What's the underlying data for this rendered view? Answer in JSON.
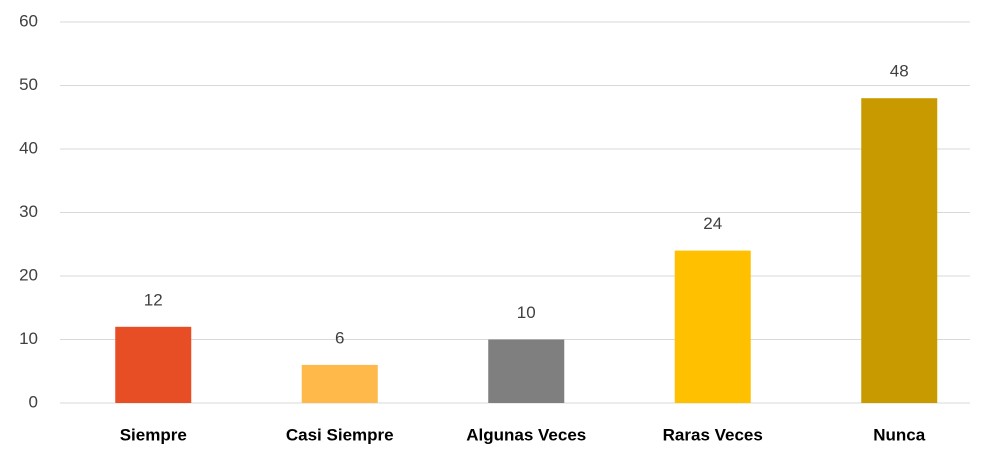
{
  "chart_data": {
    "type": "bar",
    "categories": [
      "Siempre",
      "Casi Siempre",
      "Algunas Veces",
      "Raras Veces",
      "Nunca"
    ],
    "values": [
      12,
      6,
      10,
      24,
      48
    ],
    "colors": [
      "#e84e26",
      "#ffb84a",
      "#7f7f7f",
      "#ffc000",
      "#c99a00"
    ],
    "ylim": [
      0,
      60
    ],
    "yticks": [
      0,
      10,
      20,
      30,
      40,
      50,
      60
    ],
    "grid": true,
    "data_labels": true
  }
}
